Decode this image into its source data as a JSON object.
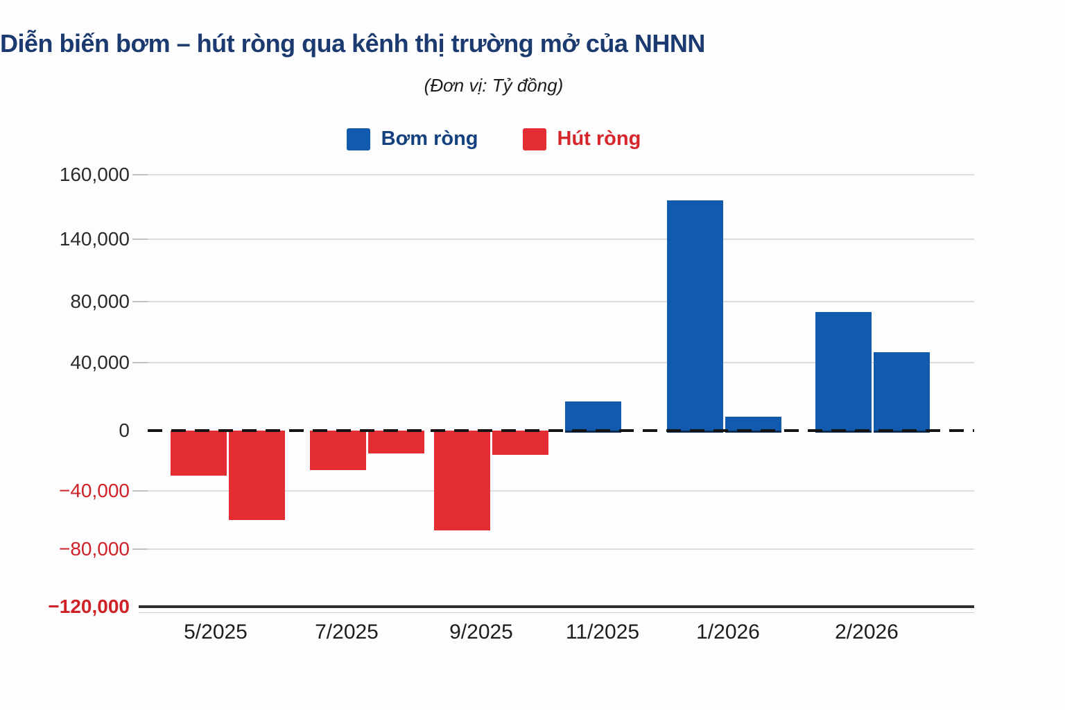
{
  "chart": {
    "title": "Diễn biến bơm – hút ròng qua kênh thị trường mở của NHNN",
    "subtitle": "(Đơn vị: Tỷ đồng)"
  },
  "chart_data": {
    "type": "bar",
    "title": "Diễn biến bơm – hút ròng qua kênh thị trường mở của NHNN",
    "subtitle": "(Đơn vị: Tỷ đồng)",
    "unit": "Tỷ đồng",
    "legend_position": "top",
    "grid": true,
    "legend": [
      {
        "label": "Bơm ròng",
        "color": "#115aad"
      },
      {
        "label": "Hút ròng",
        "color": "#e32d32"
      }
    ],
    "y_axis": {
      "ticks": [
        {
          "label": "160,000",
          "value": 160000
        },
        {
          "label": "140,000",
          "value": 140000
        },
        {
          "label": "80,000",
          "value": 80000
        },
        {
          "label": "40,000",
          "value": 40000
        },
        {
          "label": "0",
          "value": 0
        },
        {
          "label": "−40,000",
          "value": -40000
        },
        {
          "label": "−80,000",
          "value": -80000
        },
        {
          "label": "−120,000",
          "value": -120000
        }
      ],
      "range": [
        -120000,
        160000
      ]
    },
    "categories": [
      "5/2025",
      "7/2025",
      "9/2025",
      "11/2025",
      "1/2026",
      "2/2026"
    ],
    "groups": [
      {
        "category": "5/2025",
        "bars": [
          {
            "series": "Hút ròng",
            "value": -30000
          },
          {
            "series": "Hút ròng",
            "value": -60000
          }
        ]
      },
      {
        "category": "7/2025",
        "bars": [
          {
            "series": "Hút ròng",
            "value": -26000
          },
          {
            "series": "Hút ròng",
            "value": -15000
          }
        ]
      },
      {
        "category": "9/2025",
        "bars": [
          {
            "series": "Hút ròng",
            "value": -67000
          },
          {
            "series": "Hút ròng",
            "value": -16000
          }
        ]
      },
      {
        "category": "11/2025",
        "bars": [
          {
            "series": "Bơm ròng",
            "value": 17000
          }
        ]
      },
      {
        "category": "1/2026",
        "bars": [
          {
            "series": "Bơm ròng",
            "value": 152000
          },
          {
            "series": "Bơm ròng",
            "value": 8000
          }
        ]
      },
      {
        "category": "2/2026",
        "bars": [
          {
            "series": "Bơm ròng",
            "value": 73000
          },
          {
            "series": "Bơm ròng",
            "value": 47000
          }
        ]
      }
    ],
    "colors": {
      "positive": "#115aad",
      "negative": "#e32d32",
      "title": "#1b3a70",
      "legend_positive_text": "#15417f",
      "legend_negative_text": "#d6252b",
      "axis_negative_label": "#cf2127"
    }
  }
}
